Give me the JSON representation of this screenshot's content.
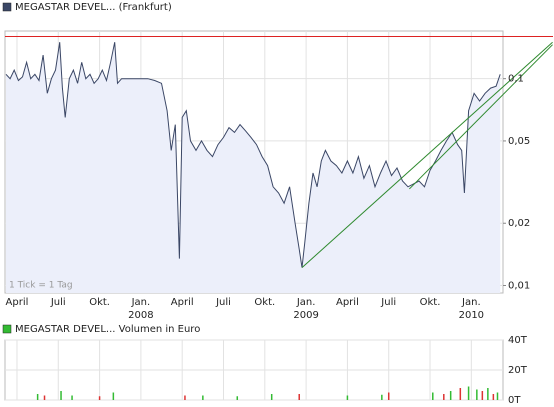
{
  "chart_data": [
    {
      "type": "line",
      "log_scale": true,
      "grid": true,
      "annotation": "1 Tick = 1 Tag",
      "x": [
        -0.8,
        -0.5,
        -0.2,
        0.1,
        0.4,
        0.7,
        1.0,
        1.3,
        1.6,
        1.9,
        2.2,
        2.5,
        2.8,
        3.1,
        3.3,
        3.5,
        3.8,
        4.1,
        4.4,
        4.7,
        5.0,
        5.3,
        5.6,
        5.9,
        6.2,
        6.5,
        6.8,
        7.1,
        7.3,
        7.6,
        8.0,
        8.5,
        9.0,
        9.5,
        10.0,
        10.5,
        10.9,
        11.2,
        11.5,
        11.8,
        12.0,
        12.3,
        12.6,
        13.0,
        13.4,
        13.8,
        14.2,
        14.6,
        15.0,
        15.4,
        15.8,
        16.2,
        16.6,
        17.0,
        17.4,
        17.8,
        18.2,
        18.6,
        19.0,
        19.4,
        19.8,
        20.2,
        20.5,
        20.7,
        20.9,
        21.2,
        21.5,
        21.8,
        22.1,
        22.4,
        22.8,
        23.2,
        23.6,
        24.0,
        24.4,
        24.8,
        25.2,
        25.6,
        26.0,
        26.4,
        26.8,
        27.2,
        27.6,
        28.0,
        28.4,
        28.8,
        29.2,
        29.6,
        30.0,
        30.4,
        30.8,
        31.2,
        31.6,
        32.0,
        32.3,
        32.5,
        32.8,
        33.2,
        33.6,
        34.0,
        34.4,
        34.8,
        35.1
      ],
      "series": [
        {
          "name": "MEGASTAR DEVEL... (Frankfurt)",
          "color": "#3b4766",
          "fill": "#eceffa",
          "values": [
            0.105,
            0.1,
            0.11,
            0.098,
            0.102,
            0.12,
            0.1,
            0.105,
            0.098,
            0.13,
            0.085,
            0.1,
            0.11,
            0.15,
            0.09,
            0.065,
            0.1,
            0.11,
            0.095,
            0.12,
            0.1,
            0.105,
            0.095,
            0.1,
            0.11,
            0.098,
            0.12,
            0.15,
            0.095,
            0.1,
            0.1,
            0.1,
            0.1,
            0.1,
            0.098,
            0.095,
            0.07,
            0.045,
            0.06,
            0.0135,
            0.065,
            0.07,
            0.05,
            0.045,
            0.05,
            0.045,
            0.042,
            0.048,
            0.052,
            0.058,
            0.055,
            0.06,
            0.056,
            0.052,
            0.048,
            0.042,
            0.038,
            0.03,
            0.028,
            0.025,
            0.03,
            0.02,
            0.015,
            0.0122,
            0.016,
            0.025,
            0.035,
            0.03,
            0.04,
            0.045,
            0.04,
            0.038,
            0.035,
            0.04,
            0.035,
            0.042,
            0.033,
            0.038,
            0.03,
            0.035,
            0.04,
            0.034,
            0.037,
            0.032,
            0.03,
            0.031,
            0.032,
            0.03,
            0.036,
            0.04,
            0.045,
            0.05,
            0.055,
            0.048,
            0.045,
            0.028,
            0.07,
            0.085,
            0.078,
            0.085,
            0.09,
            0.092,
            0.105
          ]
        }
      ],
      "hlines": [
        {
          "value": 0.16,
          "color": "#dd2222"
        }
      ],
      "trendlines": [
        {
          "color": "#2f8a2f",
          "x": [
            20.7,
            38.9
          ],
          "values": [
            0.0122,
            0.15
          ]
        },
        {
          "color": "#2f8a2f",
          "x": [
            28.5,
            38.9
          ],
          "values": [
            0.0293,
            0.146
          ]
        }
      ],
      "xlim": [
        -0.87,
        35.3
      ],
      "ylim": [
        0.0092,
        0.17
      ],
      "xticks": [
        {
          "value": 0,
          "label": "April"
        },
        {
          "value": 3,
          "label": "Juli"
        },
        {
          "value": 6,
          "label": "Okt."
        },
        {
          "value": 9,
          "label": "Jan."
        },
        {
          "value": 12,
          "label": "April"
        },
        {
          "value": 15,
          "label": "Juli"
        },
        {
          "value": 18,
          "label": "Okt."
        },
        {
          "value": 21,
          "label": "Jan."
        },
        {
          "value": 24,
          "label": "April"
        },
        {
          "value": 27,
          "label": "Juli"
        },
        {
          "value": 30,
          "label": "Okt."
        },
        {
          "value": 33,
          "label": "Jan."
        }
      ],
      "xyears": [
        {
          "value": 9,
          "label": "2008"
        },
        {
          "value": 21,
          "label": "2009"
        },
        {
          "value": 33,
          "label": "2010"
        }
      ],
      "yticks": [
        {
          "value": 0.1,
          "label": "0,1"
        },
        {
          "value": 0.05,
          "label": "0,05"
        },
        {
          "value": 0.02,
          "label": "0,02"
        },
        {
          "value": 0.01,
          "label": "0,01"
        }
      ]
    },
    {
      "type": "bar",
      "grid": true,
      "series": [
        {
          "name": "MEGASTAR DEVEL... Volumen in Euro",
          "color": "#33bb33",
          "x": [
            1.5,
            3.2,
            4.0,
            7.0,
            13.5,
            16.0,
            18.5,
            24.0,
            26.5,
            30.2,
            31.5,
            32.8,
            33.4,
            34.2,
            34.9
          ],
          "values": [
            4000,
            6000,
            3000,
            5000,
            3000,
            2500,
            4000,
            3000,
            3500,
            5000,
            6000,
            9000,
            7000,
            8000,
            5000
          ]
        },
        {
          "color": "#dd3333",
          "x": [
            2.0,
            6.0,
            12.2,
            20.5,
            27.0,
            31.0,
            32.2,
            33.8,
            34.6
          ],
          "values": [
            3000,
            2500,
            3000,
            4000,
            5000,
            4000,
            8000,
            6000,
            4000
          ]
        }
      ],
      "xlim": [
        -0.87,
        35.3
      ],
      "ylim": [
        0,
        40000
      ],
      "yticks": [
        {
          "value": 40000,
          "label": "40T"
        },
        {
          "value": 20000,
          "label": "20T"
        },
        {
          "value": 0,
          "label": "0T"
        }
      ]
    }
  ]
}
